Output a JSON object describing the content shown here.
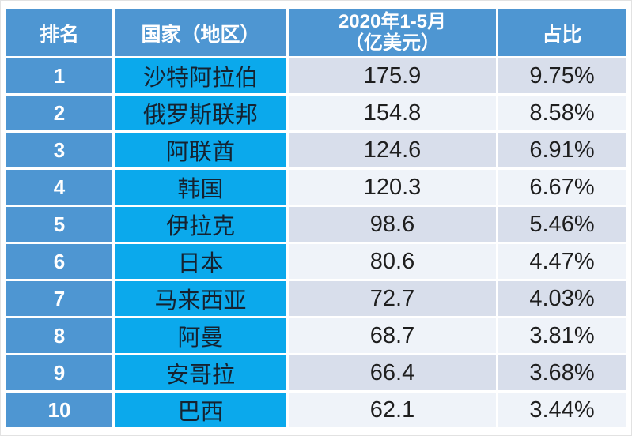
{
  "table": {
    "columns": [
      {
        "label": "排名"
      },
      {
        "label": "国家（地区）"
      },
      {
        "label_line1": "2020年1-5月",
        "label_line2": "（亿美元）"
      },
      {
        "label": "占比"
      }
    ],
    "rows": [
      {
        "rank": "1",
        "country": "沙特阿拉伯",
        "value": "175.9",
        "share": "9.75%"
      },
      {
        "rank": "2",
        "country": "俄罗斯联邦",
        "value": "154.8",
        "share": "8.58%"
      },
      {
        "rank": "3",
        "country": "阿联酋",
        "value": "124.6",
        "share": "6.91%"
      },
      {
        "rank": "4",
        "country": "韩国",
        "value": "120.3",
        "share": "6.67%"
      },
      {
        "rank": "5",
        "country": "伊拉克",
        "value": "98.6",
        "share": "5.46%"
      },
      {
        "rank": "6",
        "country": "日本",
        "value": "80.6",
        "share": "4.47%"
      },
      {
        "rank": "7",
        "country": "马来西亚",
        "value": "72.7",
        "share": "4.03%"
      },
      {
        "rank": "8",
        "country": "阿曼",
        "value": "68.7",
        "share": "3.81%"
      },
      {
        "rank": "9",
        "country": "安哥拉",
        "value": "66.4",
        "share": "3.68%"
      },
      {
        "rank": "10",
        "country": "巴西",
        "value": "62.1",
        "share": "3.44%"
      }
    ]
  },
  "colors": {
    "header_blue": "#4E96D2",
    "country_cyan": "#0BA9EC",
    "row_dark": "#D8DEEB",
    "row_light": "#EFF3F9",
    "header_text": "#FFFFFF",
    "body_text": "#1E1E1E",
    "divider": "#FFFFFF"
  },
  "chart_data": {
    "type": "table",
    "title": "",
    "columns": [
      "排名",
      "国家（地区）",
      "2020年1-5月（亿美元）",
      "占比"
    ],
    "rows": [
      [
        "1",
        "沙特阿拉伯",
        175.9,
        "9.75%"
      ],
      [
        "2",
        "俄罗斯联邦",
        154.8,
        "8.58%"
      ],
      [
        "3",
        "阿联酋",
        124.6,
        "6.91%"
      ],
      [
        "4",
        "韩国",
        120.3,
        "6.67%"
      ],
      [
        "5",
        "伊拉克",
        98.6,
        "5.46%"
      ],
      [
        "6",
        "日本",
        80.6,
        "4.47%"
      ],
      [
        "7",
        "马来西亚",
        72.7,
        "4.03%"
      ],
      [
        "8",
        "阿曼",
        68.7,
        "3.81%"
      ],
      [
        "9",
        "安哥拉",
        66.4,
        "3.68%"
      ],
      [
        "10",
        "巴西",
        62.1,
        "3.44%"
      ]
    ]
  }
}
